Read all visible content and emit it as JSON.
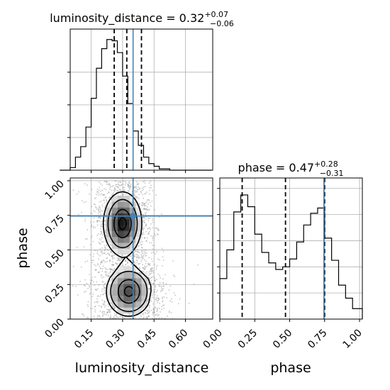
{
  "chart_data": {
    "type": "corner",
    "parameters": [
      "luminosity_distance",
      "phase"
    ],
    "injection": {
      "luminosity_distance": 0.35,
      "phase": 0.745
    },
    "injection_color": "#4682b4",
    "panels": [
      {
        "id": "hist-luminosity-distance",
        "type": "histogram",
        "title_prefix": "luminosity_distance = 0.32",
        "title_sup": "+0.07",
        "title_sub": "−0.06",
        "bin_edges": [
          0.0,
          0.025,
          0.05,
          0.075,
          0.1,
          0.125,
          0.15,
          0.175,
          0.2,
          0.225,
          0.25,
          0.275,
          0.3,
          0.325,
          0.35,
          0.375,
          0.4,
          0.425,
          0.45,
          0.475,
          0.5,
          0.525,
          0.55,
          0.575,
          0.6,
          0.625,
          0.65,
          0.675,
          0.7,
          0.725
        ],
        "counts": [
          0,
          0,
          0.02,
          0.1,
          0.18,
          0.33,
          0.55,
          0.78,
          0.93,
          1.0,
          0.99,
          0.9,
          0.72,
          0.51,
          0.3,
          0.19,
          0.1,
          0.05,
          0.03,
          0.01,
          0.01,
          0,
          0,
          0,
          0,
          0,
          0,
          0,
          0
        ],
        "quantiles": [
          0.26,
          0.32,
          0.39
        ],
        "xlim": [
          0.05,
          0.73
        ],
        "ylim": [
          0,
          1.08
        ],
        "xticks": [
          0.15,
          0.3,
          0.45,
          0.6
        ],
        "yticks": [
          0.25,
          0.5,
          0.75
        ]
      },
      {
        "id": "hist-phase",
        "type": "histogram",
        "title_prefix": "phase = 0.47",
        "title_sup": "+0.28",
        "title_sub": "−0.31",
        "bin_edges": [
          0.0,
          0.05,
          0.1,
          0.15,
          0.2,
          0.25,
          0.3,
          0.35,
          0.4,
          0.45,
          0.5,
          0.55,
          0.6,
          0.65,
          0.7,
          0.75,
          0.8,
          0.85,
          0.9,
          0.95,
          1.0,
          1.02
        ],
        "counts": [
          0.31,
          0.53,
          0.82,
          0.95,
          0.86,
          0.65,
          0.51,
          0.43,
          0.38,
          0.4,
          0.46,
          0.59,
          0.72,
          0.81,
          0.85,
          0.62,
          0.45,
          0.26,
          0.16,
          0.08,
          0.08
        ],
        "quantiles": [
          0.16,
          0.47,
          0.75
        ],
        "xlim": [
          0,
          1.02
        ],
        "ylim": [
          0,
          1.08
        ],
        "xticks": [
          0.0,
          0.25,
          0.5,
          0.75,
          1.0
        ],
        "xtick_labels": [
          "0.00",
          "0.25",
          "0.50",
          "0.75",
          "1.00"
        ],
        "yticks": [
          0.2,
          0.4,
          0.6,
          0.8,
          1.0
        ],
        "xlabel": "phase"
      },
      {
        "id": "density-lumdist-phase",
        "type": "2d-density",
        "xlim": [
          0.05,
          0.73
        ],
        "ylim": [
          0,
          1.02
        ],
        "xticks": [
          0.15,
          0.3,
          0.45,
          0.6
        ],
        "xtick_labels": [
          "0.15",
          "0.30",
          "0.45",
          "0.60"
        ],
        "yticks": [
          0.0,
          0.25,
          0.5,
          0.75,
          1.0
        ],
        "ytick_labels": [
          "0.00",
          "0.25",
          "0.50",
          "0.75",
          "1.00"
        ],
        "xlabel": "luminosity_distance",
        "ylabel": "phase",
        "modes": [
          {
            "cx": 0.3,
            "cy": 0.69,
            "sx": 0.048,
            "sy": 0.12,
            "w": 1.0
          },
          {
            "cx": 0.33,
            "cy": 0.2,
            "sx": 0.06,
            "sy": 0.1,
            "w": 0.8
          }
        ]
      }
    ],
    "grid": true
  }
}
